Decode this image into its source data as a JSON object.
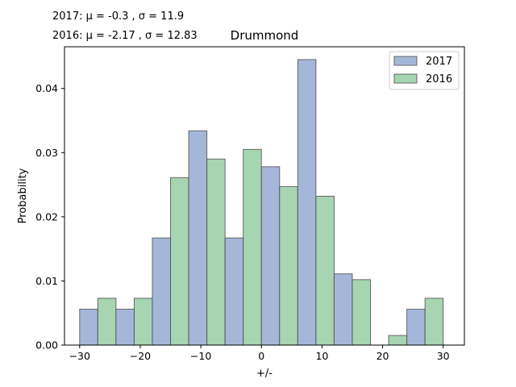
{
  "chart_data": {
    "type": "bar",
    "title": "Drummond",
    "stats_lines": [
      "2017: μ = -0.3 , σ = 11.9",
      "2016: μ = -2.17 , σ = 12.83"
    ],
    "xlabel": "+/-",
    "ylabel": "Probability",
    "xlim": [
      -32.5,
      33.5
    ],
    "ylim": [
      0,
      0.0465
    ],
    "xticks": [
      -30,
      -20,
      -10,
      0,
      10,
      20,
      30
    ],
    "xtick_labels": [
      "−30",
      "−20",
      "−10",
      "0",
      "10",
      "20",
      "30"
    ],
    "yticks": [
      0,
      0.01,
      0.02,
      0.03,
      0.04
    ],
    "ytick_labels": [
      "0.00",
      "0.01",
      "0.02",
      "0.03",
      "0.04"
    ],
    "bin_edges": [
      -30,
      -24,
      -18,
      -12,
      -6,
      0,
      6,
      12,
      18,
      24,
      30
    ],
    "series": [
      {
        "name": "2017",
        "color": "#a5b7d9",
        "values": [
          0.0056,
          0.0056,
          0.0167,
          0.0334,
          0.0167,
          0.0278,
          0.0445,
          0.0111,
          0.0,
          0.0056
        ]
      },
      {
        "name": "2016",
        "color": "#a7d4b1",
        "values": [
          0.0073,
          0.0073,
          0.0261,
          0.029,
          0.0305,
          0.0247,
          0.0232,
          0.0102,
          0.0015,
          0.0073
        ]
      }
    ],
    "legend_position": "upper right",
    "grid": false
  }
}
